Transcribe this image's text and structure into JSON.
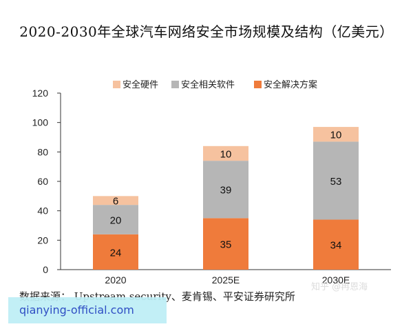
{
  "chart_data": {
    "type": "bar",
    "stacked": true,
    "title": "2020-2030年全球汽车网络安全市场规模及结构（亿美元）",
    "xlabel": "",
    "ylabel": "",
    "categories": [
      "2020",
      "2025E",
      "2030E"
    ],
    "ylim": [
      0,
      120
    ],
    "yticks": [
      0,
      20,
      40,
      60,
      80,
      100,
      120
    ],
    "grid": false,
    "legend_position": "top",
    "series": [
      {
        "name": "安全解决方案",
        "values": [
          24,
          35,
          34
        ],
        "color": "#ef7b3b"
      },
      {
        "name": "安全相关软件",
        "values": [
          20,
          39,
          53
        ],
        "color": "#b6b6b6"
      },
      {
        "name": "安全硬件",
        "values": [
          6,
          10,
          10
        ],
        "color": "#f6c29f"
      }
    ]
  },
  "source_text": "数据来源： Upstream security、麦肯锡、平安证券研究所",
  "watermark_text": "知乎 @冉恩海",
  "site_badge_text": "qianying-official.com"
}
